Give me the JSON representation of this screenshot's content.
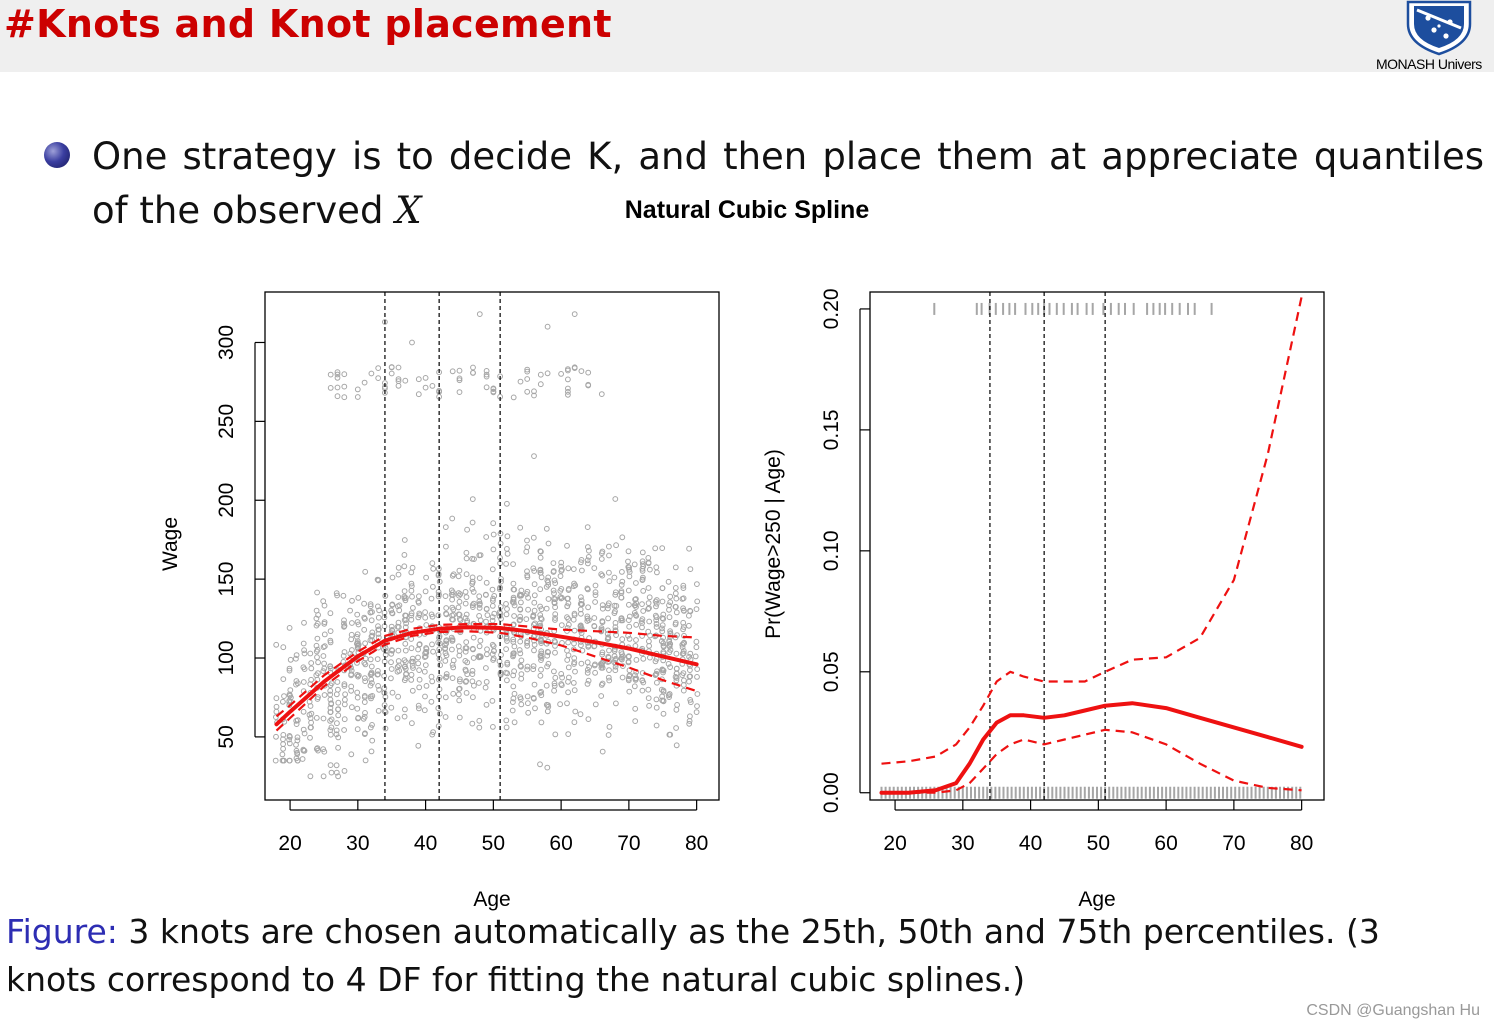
{
  "header": {
    "title": "#Knots and Knot placement",
    "logo_text": "MONASH Univers"
  },
  "bullet": {
    "text_before": "One strategy is to decide K, and then place them at appreciate quantiles of the observed ",
    "italic_var": "X"
  },
  "caption": {
    "label": "Figure:",
    "text": " 3 knots are chosen automatically as the 25th, 50th and 75th percentiles. (3 knots correspond to 4 DF for fitting the natural cubic splines.)"
  },
  "watermark": "CSDN @Guangshan Hu",
  "colors": {
    "title_red": "#cc0000",
    "caption_blue": "#2d2db3",
    "fit_red": "#ee1111",
    "points_gray": "#a6a6a6"
  },
  "chart_data": {
    "title": "Natural Cubic Spline",
    "knots": [
      34,
      42,
      51
    ],
    "panels": [
      {
        "type": "scatter",
        "xlabel": "Age",
        "ylabel": "Wage",
        "xlim": [
          16.3,
          83.3
        ],
        "ylim": [
          10,
          332
        ],
        "xticks": [
          "20",
          "30",
          "40",
          "50",
          "60",
          "70",
          "80"
        ],
        "yticks": [
          "50",
          "100",
          "150",
          "200",
          "250",
          "300"
        ],
        "fit": {
          "x": [
            18,
            20,
            25,
            30,
            34,
            38,
            42,
            46,
            51,
            55,
            60,
            65,
            70,
            75,
            80
          ],
          "y": [
            58,
            66,
            85,
            101,
            111,
            116,
            118.5,
            119.5,
            119,
            117,
            113.5,
            110,
            106,
            101,
            96
          ],
          "lower": [
            54,
            62,
            82,
            98,
            108.5,
            114,
            116.5,
            117,
            116,
            113,
            108,
            101,
            94,
            86,
            79
          ],
          "upper": [
            63,
            70,
            89,
            104,
            114,
            118.5,
            121,
            121.5,
            121.5,
            120,
            118,
            117,
            116,
            114,
            113
          ]
        }
      },
      {
        "type": "line",
        "xlabel": "Age",
        "ylabel": "Pr(Wage>250 | Age)",
        "xlim": [
          16.3,
          83.3
        ],
        "ylim": [
          -0.003,
          0.207
        ],
        "xticks": [
          "20",
          "30",
          "40",
          "50",
          "60",
          "70",
          "80"
        ],
        "yticks": [
          "0.00",
          "0.05",
          "0.10",
          "0.15",
          "0.20"
        ],
        "fit": {
          "x": [
            18,
            22,
            26,
            29,
            31,
            33,
            35,
            37,
            39,
            42,
            45,
            48,
            51,
            55,
            60,
            65,
            70,
            75,
            80
          ],
          "y": [
            0.0,
            0.0,
            0.001,
            0.004,
            0.012,
            0.022,
            0.029,
            0.032,
            0.032,
            0.031,
            0.032,
            0.034,
            0.036,
            0.037,
            0.035,
            0.031,
            0.027,
            0.023,
            0.019
          ],
          "lower": [
            0.0,
            0.0,
            0.0,
            0.001,
            0.004,
            0.01,
            0.016,
            0.02,
            0.022,
            0.02,
            0.022,
            0.024,
            0.026,
            0.025,
            0.02,
            0.012,
            0.005,
            0.002,
            0.001
          ],
          "upper": [
            0.012,
            0.013,
            0.015,
            0.02,
            0.027,
            0.036,
            0.046,
            0.05,
            0.048,
            0.046,
            0.046,
            0.046,
            0.05,
            0.055,
            0.056,
            0.064,
            0.088,
            0.14,
            0.205
          ]
        },
        "rug_top_ages": [
          26,
          32,
          33,
          34,
          35,
          36,
          37,
          38,
          39,
          40,
          41,
          42,
          43,
          44,
          45,
          46,
          47,
          48,
          49,
          51,
          52,
          53,
          54,
          55,
          57,
          58,
          59,
          60,
          61,
          62,
          63,
          64,
          67
        ]
      }
    ]
  }
}
